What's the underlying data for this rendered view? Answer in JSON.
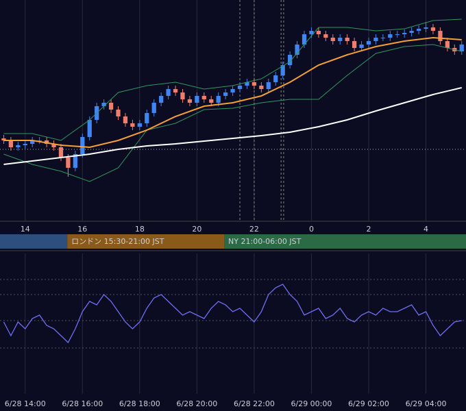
{
  "chart_data": [
    {
      "type": "candlestick",
      "xlim": [
        13.12,
        29.4
      ],
      "ylim": [
        0,
        322
      ],
      "xticks": [
        14,
        16,
        18,
        20,
        22,
        {
          "value": 24,
          "label": "0"
        },
        {
          "value": 26,
          "label": "2"
        },
        {
          "value": 28,
          "label": "4"
        }
      ],
      "up_color": "#3f86f2",
      "down_color": "#ef7f6c",
      "x": [
        13.25,
        13.5,
        13.75,
        14,
        14.25,
        14.5,
        14.75,
        15,
        15.25,
        15.5,
        15.75,
        16,
        16.25,
        16.5,
        16.75,
        17,
        17.25,
        17.5,
        17.75,
        18,
        18.25,
        18.5,
        18.75,
        19,
        19.25,
        19.5,
        19.75,
        20,
        20.25,
        20.5,
        20.75,
        21,
        21.25,
        21.5,
        21.75,
        22,
        22.25,
        22.5,
        22.75,
        23,
        23.25,
        23.5,
        23.75,
        24,
        24.25,
        24.5,
        24.75,
        25,
        25.25,
        25.5,
        25.75,
        26,
        26.25,
        26.5,
        26.75,
        27,
        27.25,
        27.5,
        27.75,
        28,
        28.25,
        28.5,
        28.75,
        29,
        29.25
      ],
      "open": [
        120,
        117,
        107,
        110,
        112,
        117,
        117,
        112,
        107,
        92,
        77,
        97,
        122,
        147,
        167,
        172,
        162,
        152,
        142,
        137,
        142,
        157,
        172,
        182,
        192,
        187,
        177,
        172,
        182,
        177,
        172,
        182,
        187,
        192,
        197,
        202,
        197,
        192,
        202,
        212,
        227,
        242,
        257,
        272,
        277,
        272,
        267,
        262,
        267,
        262,
        252,
        257,
        262,
        267,
        267,
        272,
        272,
        274,
        277,
        280,
        282,
        277,
        262,
        252,
        247
      ],
      "high": [
        125,
        122,
        115,
        117,
        122,
        122,
        122,
        117,
        112,
        97,
        102,
        127,
        152,
        172,
        177,
        177,
        167,
        157,
        147,
        147,
        162,
        177,
        187,
        197,
        197,
        192,
        182,
        187,
        187,
        182,
        187,
        192,
        197,
        202,
        207,
        207,
        202,
        207,
        217,
        232,
        247,
        262,
        277,
        282,
        282,
        277,
        272,
        272,
        272,
        267,
        262,
        267,
        272,
        272,
        277,
        277,
        279,
        282,
        285,
        290,
        287,
        282,
        267,
        257,
        262
      ],
      "low": [
        112,
        102,
        102,
        105,
        107,
        112,
        107,
        102,
        87,
        64,
        72,
        92,
        117,
        142,
        162,
        157,
        147,
        137,
        132,
        132,
        137,
        152,
        167,
        177,
        182,
        172,
        167,
        167,
        172,
        167,
        167,
        177,
        182,
        187,
        192,
        192,
        187,
        187,
        197,
        207,
        222,
        237,
        252,
        267,
        267,
        262,
        257,
        257,
        257,
        247,
        247,
        252,
        257,
        262,
        262,
        267,
        267,
        269,
        272,
        275,
        272,
        257,
        247,
        242,
        242
      ],
      "close": [
        117,
        107,
        110,
        112,
        117,
        117,
        112,
        107,
        92,
        77,
        97,
        122,
        147,
        167,
        172,
        162,
        152,
        142,
        137,
        142,
        157,
        172,
        182,
        192,
        187,
        177,
        172,
        182,
        177,
        172,
        182,
        187,
        192,
        197,
        202,
        197,
        192,
        202,
        212,
        227,
        242,
        257,
        272,
        277,
        272,
        267,
        262,
        267,
        262,
        252,
        257,
        262,
        267,
        267,
        272,
        272,
        274,
        277,
        280,
        282,
        277,
        262,
        252,
        247,
        257
      ],
      "overlay_x": [
        13.25,
        14.25,
        15.25,
        16.25,
        17.25,
        18.25,
        19.25,
        20.25,
        21.25,
        22.25,
        23.25,
        24.25,
        25.25,
        26.25,
        27.25,
        28.25,
        29.25
      ],
      "overlays": [
        {
          "color": "#2f9a5c",
          "values": [
            127,
            127,
            117,
            147,
            187,
            197,
            202,
            192,
            197,
            207,
            232,
            282,
            282,
            277,
            280,
            292,
            294
          ]
        },
        {
          "color": "#2f9a5c",
          "values": [
            97,
            82,
            72,
            57,
            77,
            132,
            142,
            162,
            164,
            172,
            177,
            177,
            212,
            244,
            254,
            257,
            247
          ]
        },
        {
          "color": "#ffffff",
          "values": [
            82,
            87,
            92,
            97,
            104,
            109,
            112,
            116,
            120,
            124,
            129,
            137,
            147,
            160,
            172,
            184,
            194
          ]
        },
        {
          "color": "#f5a033",
          "values": [
            117,
            117,
            110,
            107,
            117,
            132,
            152,
            167,
            172,
            182,
            202,
            227,
            242,
            254,
            262,
            267,
            264
          ]
        }
      ],
      "reference_line": 104,
      "vlines": [
        21.5,
        22.0,
        22.94,
        23.03
      ],
      "sessions": [
        {
          "label": null,
          "start": 13.12,
          "end": 15.47,
          "color": "#2d4f7d"
        },
        {
          "label": "ロンドン 15:30-21:00 JST",
          "start": 15.47,
          "end": 20.95,
          "color": "#8a5a1a"
        },
        {
          "label": "NY 21:00-06:00 JST",
          "start": 20.95,
          "end": 29.4,
          "color": "#2a6a45"
        }
      ]
    },
    {
      "type": "line",
      "xlim": [
        13.12,
        29.4
      ],
      "ylim": [
        0,
        205
      ],
      "xticks": [
        {
          "value": 14,
          "label": "6/28 14:00"
        },
        {
          "value": 16,
          "label": "6/28 16:00"
        },
        {
          "value": 18,
          "label": "6/28 18:00"
        },
        {
          "value": 20,
          "label": "6/28 20:00"
        },
        {
          "value": 22,
          "label": "6/28 22:00"
        },
        {
          "value": 24,
          "label": "6/29 00:00"
        },
        {
          "value": 26,
          "label": "6/29 02:00"
        },
        {
          "value": 28,
          "label": "6/29 04:00"
        }
      ],
      "levels": [
        67,
        107,
        145,
        167
      ],
      "color": "#6f6ff5",
      "x": [
        13.25,
        13.5,
        13.75,
        14,
        14.25,
        14.5,
        14.75,
        15,
        15.25,
        15.5,
        15.75,
        16,
        16.25,
        16.5,
        16.75,
        17,
        17.25,
        17.5,
        17.75,
        18,
        18.25,
        18.5,
        18.75,
        19,
        19.25,
        19.5,
        19.75,
        20,
        20.25,
        20.5,
        20.75,
        21,
        21.25,
        21.5,
        21.75,
        22,
        22.25,
        22.5,
        22.75,
        23,
        23.25,
        23.5,
        23.75,
        24,
        24.25,
        24.5,
        24.75,
        25,
        25.25,
        25.5,
        25.75,
        26,
        26.25,
        26.5,
        26.75,
        27,
        27.25,
        27.5,
        27.75,
        28,
        28.25,
        28.5,
        28.75,
        29,
        29.25
      ],
      "values": [
        105,
        85,
        105,
        95,
        110,
        115,
        100,
        95,
        85,
        75,
        95,
        120,
        135,
        130,
        145,
        135,
        120,
        105,
        95,
        105,
        125,
        140,
        145,
        135,
        125,
        115,
        120,
        115,
        110,
        125,
        135,
        130,
        120,
        125,
        115,
        105,
        120,
        145,
        155,
        160,
        145,
        135,
        115,
        120,
        125,
        110,
        115,
        125,
        110,
        105,
        115,
        120,
        115,
        125,
        120,
        120,
        125,
        130,
        115,
        120,
        100,
        85,
        95,
        105,
        107
      ]
    }
  ]
}
